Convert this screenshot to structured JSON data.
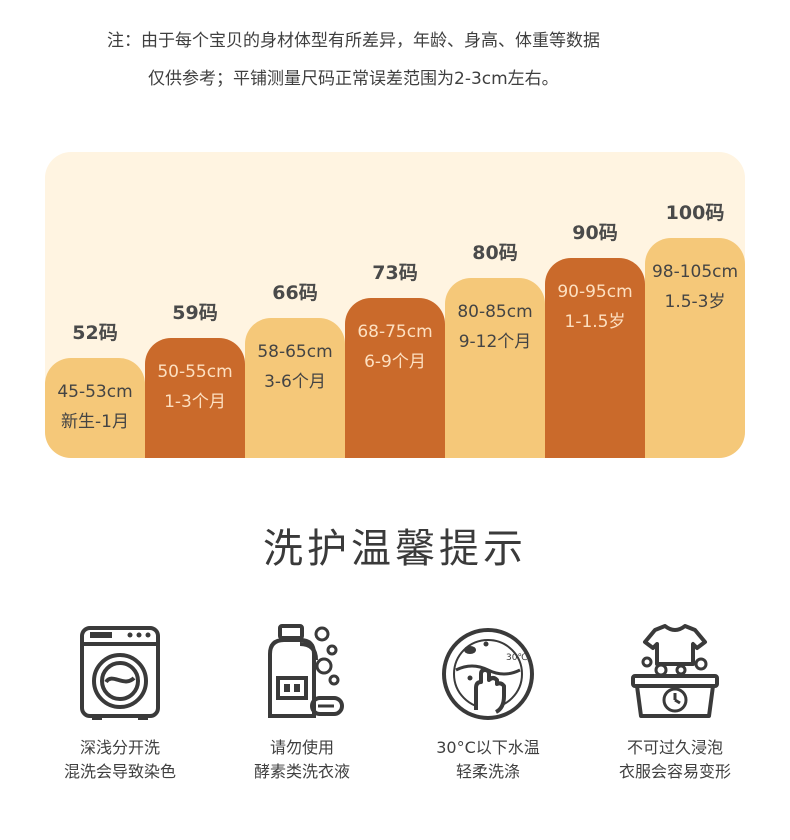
{
  "note": {
    "line1": "注：由于每个宝贝的身材体型有所差异，年龄、身高、体重等数据",
    "line2": "仅供参考；平铺测量尺码正常误差范围为2-3cm左右。"
  },
  "size_chart": [
    {
      "size": "52码",
      "range": "45-53cm",
      "age": "新生-1月",
      "level": 1,
      "tone": "light"
    },
    {
      "size": "59码",
      "range": "50-55cm",
      "age": "1-3个月",
      "level": 2,
      "tone": "dark"
    },
    {
      "size": "66码",
      "range": "58-65cm",
      "age": "3-6个月",
      "level": 3,
      "tone": "light"
    },
    {
      "size": "73码",
      "range": "68-75cm",
      "age": "6-9个月",
      "level": 4,
      "tone": "dark"
    },
    {
      "size": "80码",
      "range": "80-85cm",
      "age": "9-12个月",
      "level": 5,
      "tone": "light"
    },
    {
      "size": "90码",
      "range": "90-95cm",
      "age": "1-1.5岁",
      "level": 6,
      "tone": "dark"
    },
    {
      "size": "100码",
      "range": "98-105cm",
      "age": "1.5-3岁",
      "level": 7,
      "tone": "light"
    }
  ],
  "colors": {
    "panel": "#fff4e1",
    "light_bar": "#f5c879",
    "dark_bar": "#ca6a2b",
    "icon_stroke": "#3a3a3a"
  },
  "care": {
    "title": "洗护温馨提示",
    "items": [
      {
        "icon": "washing-machine-icon",
        "line1": "深浅分开洗",
        "line2": "混洗会导致染色"
      },
      {
        "icon": "detergent-bottle-icon",
        "line1": "请勿使用",
        "line2": "酵素类洗衣液"
      },
      {
        "icon": "hand-wash-icon",
        "line1": "30°C以下水温",
        "line2": "轻柔洗涤",
        "badge": "30℃"
      },
      {
        "icon": "soak-basin-icon",
        "line1": "不可过久浸泡",
        "line2": "衣服会容易变形"
      }
    ]
  }
}
